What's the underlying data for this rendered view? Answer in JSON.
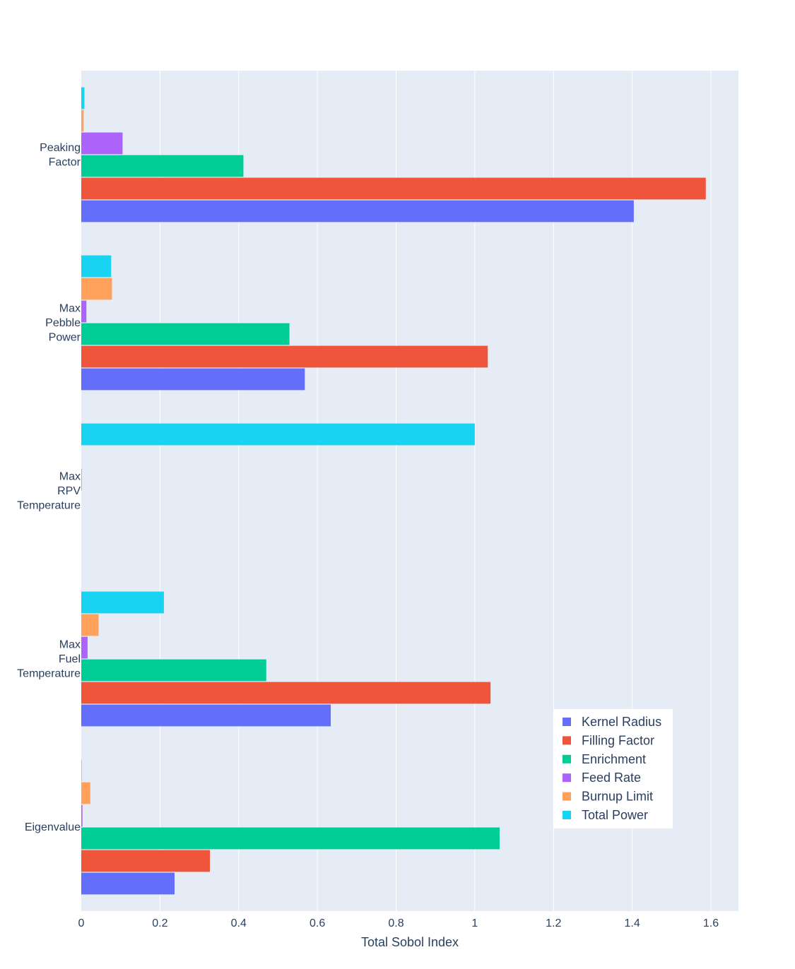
{
  "chart_data": {
    "type": "bar",
    "orientation": "horizontal",
    "xlabel": "Total Sobol Index",
    "ylabel": "",
    "xlim": [
      0,
      1.67
    ],
    "x_ticks": [
      0,
      0.2,
      0.4,
      0.6,
      0.8,
      1,
      1.2,
      1.4,
      1.6
    ],
    "x_tick_labels": [
      "0",
      "0.2",
      "0.4",
      "0.6",
      "0.8",
      "1",
      "1.2",
      "1.4",
      "1.6"
    ],
    "grid": true,
    "legend_position": "bottom-right",
    "categories": [
      [
        "Eigenvalue"
      ],
      [
        "Max",
        "Fuel",
        "Temperature"
      ],
      [
        "Max",
        "RPV",
        "Temperature"
      ],
      [
        "Max",
        "Pebble",
        "Power"
      ],
      [
        "Peaking",
        "Factor"
      ]
    ],
    "series": [
      {
        "name": "Kernel Radius",
        "color": "#636efa",
        "values": [
          0.237,
          0.634,
          0.0,
          0.568,
          1.404
        ]
      },
      {
        "name": "Filling Factor",
        "color": "#ef553b",
        "values": [
          0.327,
          1.04,
          0.0,
          1.033,
          1.587
        ]
      },
      {
        "name": "Enrichment",
        "color": "#00cc96",
        "values": [
          1.063,
          0.47,
          0.0,
          0.529,
          0.412
        ]
      },
      {
        "name": "Feed Rate",
        "color": "#ab63fa",
        "values": [
          0.003,
          0.016,
          0.001,
          0.013,
          0.105
        ]
      },
      {
        "name": "Burnup Limit",
        "color": "#ffa15a",
        "values": [
          0.023,
          0.044,
          0.0,
          0.078,
          0.006
        ]
      },
      {
        "name": "Total Power",
        "color": "#19d3f3",
        "values": [
          0.001,
          0.21,
          1.0,
          0.076,
          0.008
        ]
      }
    ]
  }
}
